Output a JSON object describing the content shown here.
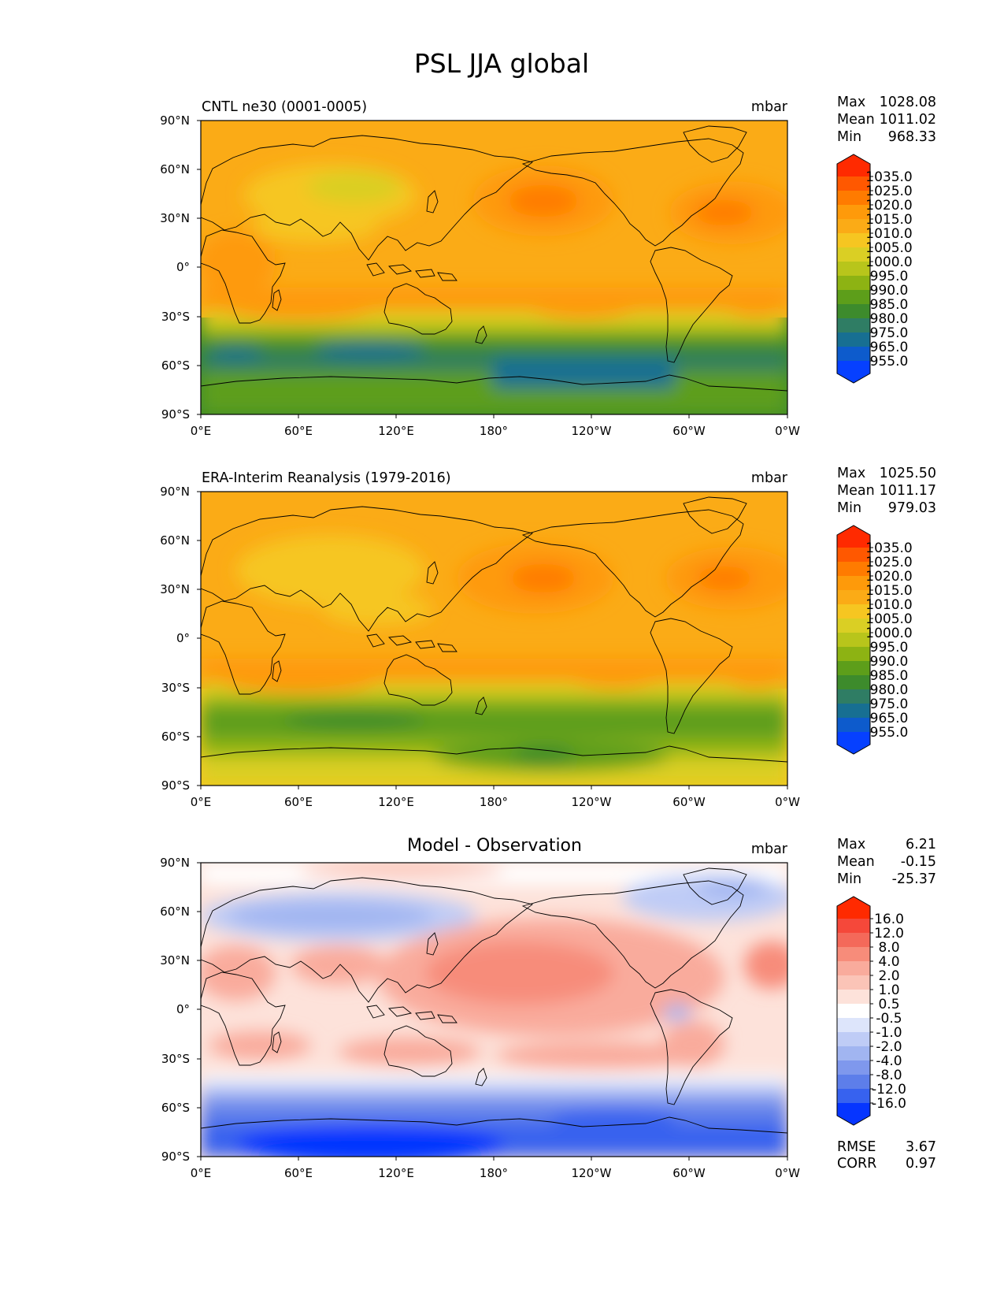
{
  "figure_title": "PSL JJA global",
  "axes": {
    "lat_ticks": [
      "90°N",
      "60°N",
      "30°N",
      "0°",
      "30°S",
      "60°S",
      "90°S"
    ],
    "lon_ticks": [
      "0°E",
      "60°E",
      "120°E",
      "180°",
      "120°W",
      "60°W",
      "0°W"
    ]
  },
  "chart_data": [
    {
      "type": "heatmap",
      "title": "CNTL ne30 (0001-0005)",
      "units": "mbar",
      "projection": "PlateCarree",
      "stats": {
        "max_label": "Max",
        "max": "1028.08",
        "mean_label": "Mean",
        "mean": "1011.02",
        "min_label": "Min",
        "min": "968.33"
      },
      "colorbar": {
        "levels": [
          "1035.0",
          "1025.0",
          "1020.0",
          "1015.0",
          "1010.0",
          "1005.0",
          "1000.0",
          "995.0",
          "990.0",
          "985.0",
          "980.0",
          "975.0",
          "965.0",
          "955.0"
        ],
        "colors": [
          "#ff2a00",
          "#ff5800",
          "#ff7b00",
          "#fe9a0a",
          "#fbab16",
          "#f6c621",
          "#dacf24",
          "#b8c51b",
          "#8db313",
          "#5d9e1a",
          "#3d8b2c",
          "#2f7d64",
          "#176f92",
          "#0d5bcc",
          "#0640ff"
        ],
        "extend": "both"
      },
      "field_summary": {
        "nh_highs": [
          "North Pacific ~1025",
          "North Atlantic ~1025"
        ],
        "sh_subtropical_highs": "~1020 at 30°S",
        "southern_ocean_low": "~970-980 at 60°S",
        "antarctic_low": "~965"
      }
    },
    {
      "type": "heatmap",
      "title": "ERA-Interim Reanalysis (1979-2016)",
      "units": "mbar",
      "projection": "PlateCarree",
      "stats": {
        "max_label": "Max",
        "max": "1025.50",
        "mean_label": "Mean",
        "mean": "1011.17",
        "min_label": "Min",
        "min": "979.03"
      },
      "colorbar": {
        "levels": [
          "1035.0",
          "1025.0",
          "1020.0",
          "1015.0",
          "1010.0",
          "1005.0",
          "1000.0",
          "995.0",
          "990.0",
          "985.0",
          "980.0",
          "975.0",
          "965.0",
          "955.0"
        ],
        "colors": [
          "#ff2a00",
          "#ff5800",
          "#ff7b00",
          "#fe9a0a",
          "#fbab16",
          "#f6c621",
          "#dacf24",
          "#b8c51b",
          "#8db313",
          "#5d9e1a",
          "#3d8b2c",
          "#2f7d64",
          "#176f92",
          "#0d5bcc",
          "#0640ff"
        ],
        "extend": "both"
      },
      "field_summary": {
        "nh_highs": [
          "North Pacific ~1022",
          "North Atlantic ~1022"
        ],
        "sh_subtropical_highs": "~1020 at 30°S",
        "southern_ocean_low": "~980-985 at 60°S",
        "antarctic": "~1005-1010"
      }
    },
    {
      "type": "heatmap",
      "title": "Model - Observation",
      "units": "mbar",
      "projection": "PlateCarree",
      "stats": {
        "max_label": "Max",
        "max": "6.21",
        "mean_label": "Mean",
        "mean": "-0.15",
        "min_label": "Min",
        "min": "-25.37"
      },
      "metrics": {
        "rmse_label": "RMSE",
        "rmse": "3.67",
        "corr_label": "CORR",
        "corr": "0.97"
      },
      "colorbar": {
        "levels": [
          "16.0",
          "12.0",
          "8.0",
          "4.0",
          "2.0",
          "1.0",
          "0.5",
          "-0.5",
          "-1.0",
          "-2.0",
          "-4.0",
          "-8.0",
          "-12.0",
          "-16.0"
        ],
        "colors": [
          "#ff2a00",
          "#f5483a",
          "#f4695a",
          "#f78c7a",
          "#f9ab9c",
          "#fbc4b7",
          "#fde2da",
          "#ffffff",
          "#dde5fb",
          "#bfccf6",
          "#a1b5f1",
          "#7f98ed",
          "#5d7eea",
          "#3762ef",
          "#0635ff"
        ],
        "extend": "both"
      },
      "field_summary": {
        "positive": "Pacific and subtropics +2 to +4",
        "negative": "Southern Ocean and Antarctica -8 to -16, Siberia -2 to -4"
      }
    }
  ]
}
